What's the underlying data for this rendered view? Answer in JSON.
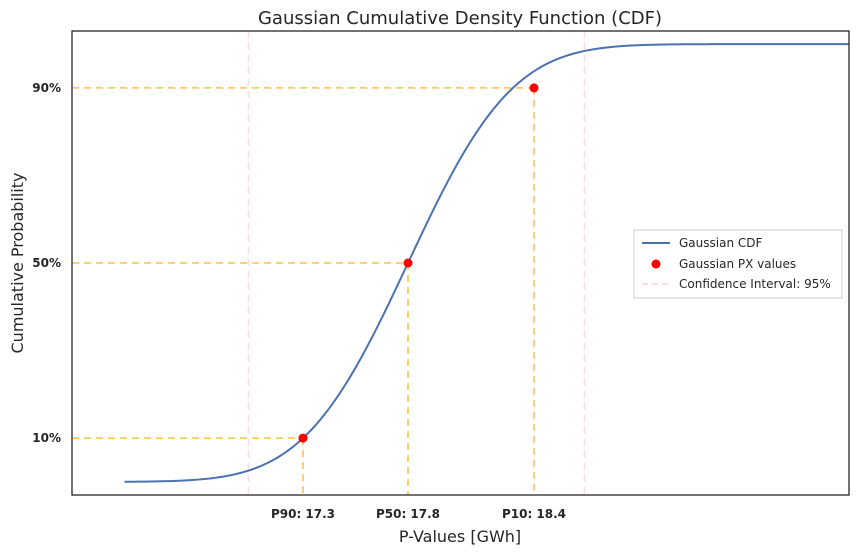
{
  "chart_data": {
    "type": "line",
    "title": "Gaussian Cumulative Density Function (CDF)",
    "xlabel": "P-Values [GWh]",
    "ylabel": "Cumulative Probability",
    "xlim": [
      16.2,
      19.9
    ],
    "ylim": [
      -0.03,
      1.03
    ],
    "distribution": {
      "mean": 17.8,
      "std": 0.39
    },
    "series": [
      {
        "name": "Gaussian CDF",
        "kind": "line",
        "color": "#4c72b0"
      },
      {
        "name": "Gaussian PX values",
        "kind": "points",
        "color": "#ff0000",
        "points": [
          {
            "x": 17.3,
            "y": 0.1
          },
          {
            "x": 17.8,
            "y": 0.5
          },
          {
            "x": 18.4,
            "y": 0.9
          }
        ]
      }
    ],
    "confidence_interval": {
      "label": "Confidence Interval: 95%",
      "lower": 17.04,
      "upper": 18.64,
      "color": "#ffc0cb"
    },
    "guide_color": "#ffa500",
    "x_ticks": [
      {
        "value": 17.3,
        "label": "P90: 17.3"
      },
      {
        "value": 17.8,
        "label": "P50: 17.8"
      },
      {
        "value": 18.4,
        "label": "P10: 18.4"
      }
    ],
    "y_ticks": [
      {
        "value": 0.1,
        "label": "10%"
      },
      {
        "value": 0.5,
        "label": "50%"
      },
      {
        "value": 0.9,
        "label": "90%"
      }
    ],
    "legend": {
      "position": "center-right",
      "entries": [
        "Gaussian CDF",
        "Gaussian PX values",
        "Confidence Interval: 95%"
      ]
    },
    "grid": false
  }
}
